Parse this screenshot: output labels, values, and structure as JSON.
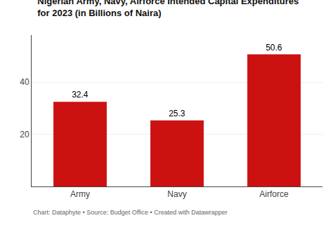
{
  "chart_data": {
    "type": "bar",
    "title": "Nigerian Army, Navy, Airforce Intended Capital Expenditures",
    "subtitle": "for 2023 (in Billions of Naira)",
    "annotations": [
      "Chart: Dataphyte • Source: Budget Office • Created with Datawrapper"
    ],
    "categories": [
      "Army",
      "Navy",
      "Airforce"
    ],
    "values": [
      32.4,
      25.3,
      50.6
    ],
    "color": "#cc1111",
    "ylim": [
      0,
      58
    ],
    "yticks": [
      20,
      40
    ],
    "grid": true,
    "data_labels": true
  }
}
